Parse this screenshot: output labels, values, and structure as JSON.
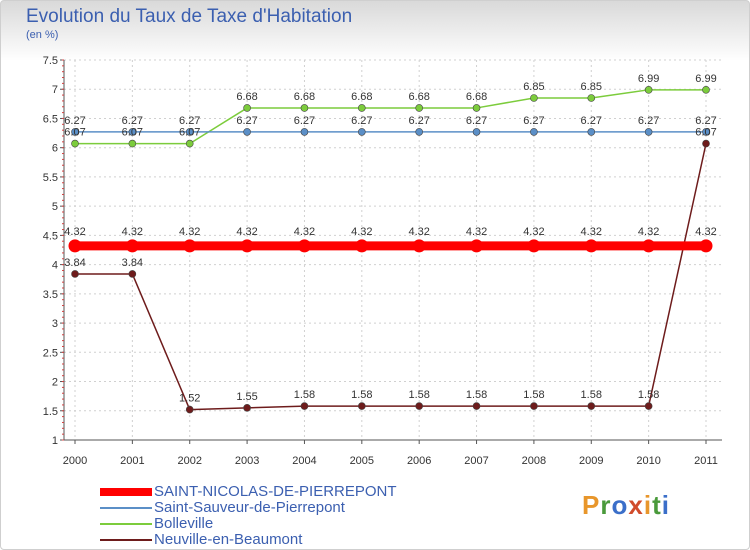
{
  "header": {
    "title": "Evolution du Taux de Taxe d'Habitation",
    "subtitle": "(en %)"
  },
  "logo": {
    "letters": [
      "P",
      "r",
      "o",
      "x",
      "i",
      "t",
      "i"
    ],
    "colors": [
      "#e8962b",
      "#4a9a3b",
      "#3b6fc9",
      "#d14b2b",
      "#e8962b",
      "#4a9a3b",
      "#3b6fc9"
    ]
  },
  "chart_data": {
    "type": "line",
    "x": [
      "2000",
      "2001",
      "2002",
      "2003",
      "2004",
      "2005",
      "2006",
      "2007",
      "2008",
      "2009",
      "2010",
      "2011"
    ],
    "ylim": [
      1,
      7.5
    ],
    "yticks": [
      "1",
      "1.5",
      "2",
      "2.5",
      "3",
      "3.5",
      "4",
      "4.5",
      "5",
      "5.5",
      "6",
      "6.5",
      "7",
      "7.5"
    ],
    "grid": true,
    "legend_position": "bottom-left",
    "series": [
      {
        "name": "SAINT-NICOLAS-DE-PIERREPONT",
        "color": "#ff0000",
        "thick": true,
        "values": [
          4.32,
          4.32,
          4.32,
          4.32,
          4.32,
          4.32,
          4.32,
          4.32,
          4.32,
          4.32,
          4.32,
          4.32
        ],
        "labels": [
          "4.32",
          "4.32",
          "4.32",
          "4.32",
          "4.32",
          "4.32",
          "4.32",
          "4.32",
          "4.32",
          "4.32",
          "4.32",
          "4.32"
        ]
      },
      {
        "name": "Saint-Sauveur-de-Pierrepont",
        "color": "#5b8fc7",
        "thick": false,
        "values": [
          6.27,
          6.27,
          6.27,
          6.27,
          6.27,
          6.27,
          6.27,
          6.27,
          6.27,
          6.27,
          6.27,
          6.27
        ],
        "labels": [
          "6.27",
          "6.27",
          "6.27",
          "6.27",
          "6.27",
          "6.27",
          "6.27",
          "6.27",
          "6.27",
          "6.27",
          "6.27",
          "6.27"
        ]
      },
      {
        "name": "Bolleville",
        "color": "#7ccc3c",
        "thick": false,
        "values": [
          6.07,
          6.07,
          6.07,
          6.68,
          6.68,
          6.68,
          6.68,
          6.68,
          6.85,
          6.85,
          6.99,
          6.99
        ],
        "labels": [
          "6.07",
          "6.07",
          "6.07",
          "6.68",
          "6.68",
          "6.68",
          "6.68",
          "6.68",
          "6.85",
          "6.85",
          "6.99",
          "6.99"
        ]
      },
      {
        "name": "Neuville-en-Beaumont",
        "color": "#6e1c1c",
        "thick": false,
        "values": [
          3.84,
          3.84,
          1.52,
          1.55,
          1.58,
          1.58,
          1.58,
          1.58,
          1.58,
          1.58,
          1.58,
          6.07
        ],
        "labels": [
          "3.84",
          "3.84",
          "1.52",
          "1.55",
          "1.58",
          "1.58",
          "1.58",
          "1.58",
          "1.58",
          "1.58",
          "1.58",
          "6.07"
        ]
      }
    ]
  }
}
